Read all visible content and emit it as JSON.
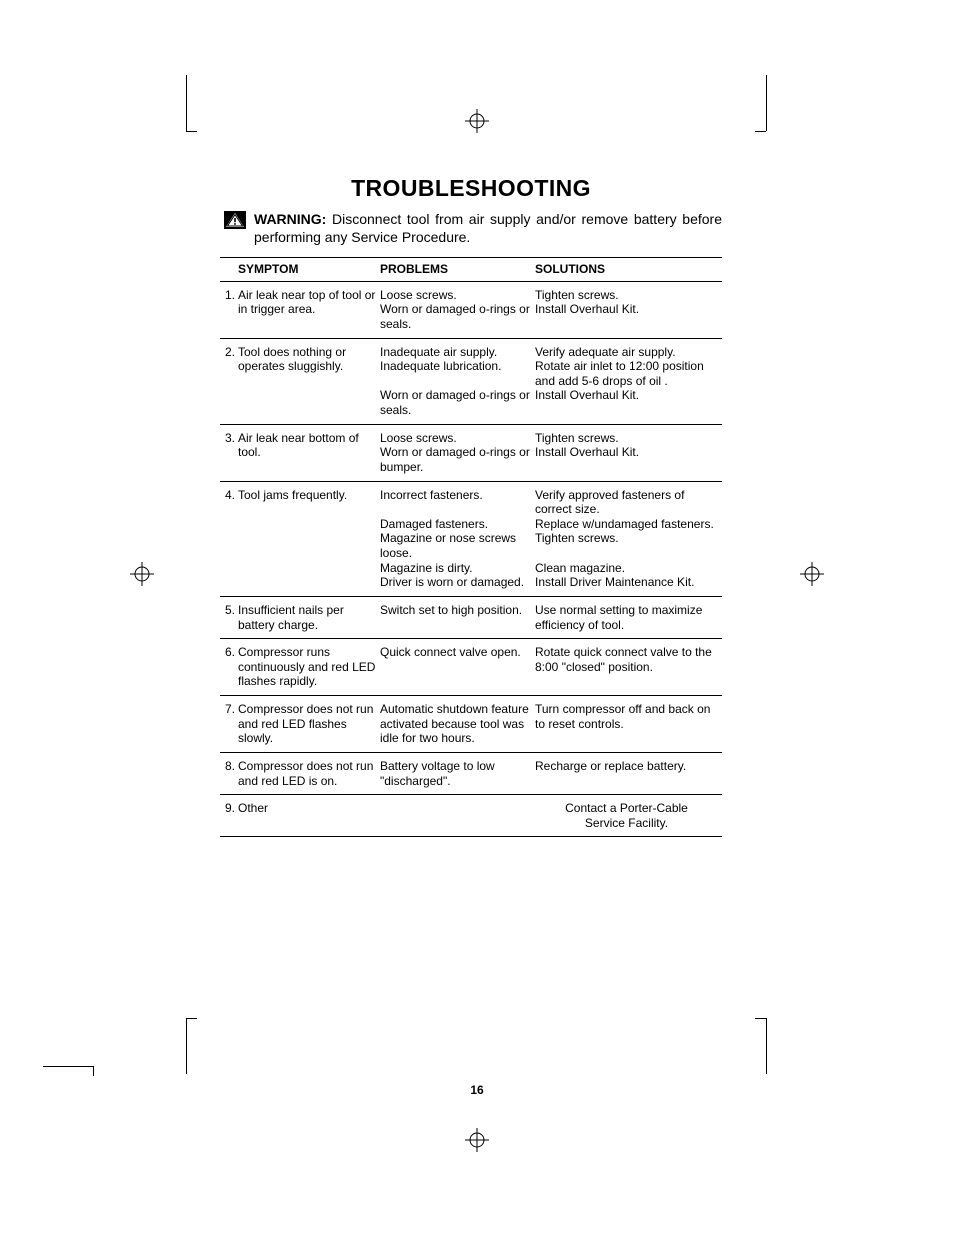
{
  "title": "TROUBLESHOOTING",
  "warning_label": "WARNING:",
  "warning_text": "Disconnect tool from air supply and/or remove battery before performing any Service Procedure.",
  "headers": {
    "symptom": "SYMPTOM",
    "problems": "PROBLEMS",
    "solutions": "SOLUTIONS"
  },
  "rows": [
    {
      "num": "1.",
      "symptom": "Air leak near top of tool or in trigger area.",
      "problems": [
        [
          "Loose screws."
        ],
        [
          "Worn or damaged o-rings or seals."
        ]
      ],
      "solutions": [
        [
          "Tighten screws."
        ],
        [
          "Install Overhaul Kit."
        ]
      ]
    },
    {
      "num": "2.",
      "symptom": "Tool does nothing or operates sluggishly.",
      "problems": [
        [
          "Inadequate air supply."
        ],
        [
          "Inadequate lubrication."
        ],
        [
          ""
        ],
        [
          "Worn or damaged o-rings or seals."
        ]
      ],
      "solutions": [
        [
          "Verify adequate air supply."
        ],
        [
          "Rotate air inlet to 12:00 position and add 5-6 drops  of oil ."
        ],
        [
          "Install Overhaul Kit."
        ]
      ]
    },
    {
      "num": "3.",
      "symptom": "Air leak near bottom of tool.",
      "problems": [
        [
          "Loose screws."
        ],
        [
          "Worn or damaged o-rings or bumper."
        ]
      ],
      "solutions": [
        [
          "Tighten screws."
        ],
        [
          "Install Overhaul Kit."
        ]
      ]
    },
    {
      "num": "4.",
      "symptom": "Tool jams frequently.",
      "problems": [
        [
          "Incorrect fasteners."
        ],
        [
          ""
        ],
        [
          "Damaged fasteners."
        ],
        [
          "Magazine or nose screws loose."
        ],
        [
          "Magazine is dirty."
        ],
        [
          "Driver is worn or damaged."
        ]
      ],
      "solutions": [
        [
          "Verify approved fasteners of correct size."
        ],
        [
          "Replace w/undamaged fasteners."
        ],
        [
          "Tighten screws."
        ],
        [
          ""
        ],
        [
          "Clean magazine."
        ],
        [
          "Install Driver Maintenance Kit."
        ]
      ]
    },
    {
      "num": "5.",
      "symptom": "Insufficient nails per battery charge.",
      "problems": [
        [
          "Switch set to high position."
        ]
      ],
      "solutions": [
        [
          "Use normal setting to maximize efficiency of tool."
        ]
      ]
    },
    {
      "num": "6.",
      "symptom": "Compressor runs continuously and red LED flashes rapidly.",
      "problems": [
        [
          "Quick  connect valve open."
        ]
      ],
      "solutions": [
        [
          "Rotate quick connect valve to the 8:00 \"closed\" position."
        ]
      ]
    },
    {
      "num": "7.",
      "symptom": "Compressor does not run and red LED flashes slowly.",
      "problems": [
        [
          "Automatic shutdown feature activated because tool was idle for two hours."
        ]
      ],
      "solutions": [
        [
          "Turn compressor off and back on to reset controls."
        ]
      ]
    },
    {
      "num": "8.",
      "symptom": "Compressor does not run and red LED is on.",
      "problems": [
        [
          "Battery voltage to low \"discharged\"."
        ]
      ],
      "solutions": [
        [
          "Recharge or replace battery."
        ]
      ]
    },
    {
      "num": "9.",
      "symptom": "Other",
      "problems": [],
      "solutions": [
        [
          "Contact a Porter-Cable"
        ],
        [
          "Service Facility."
        ]
      ],
      "solutions_center": true
    }
  ],
  "page_number": "16",
  "colors": {
    "text": "#000000",
    "bg": "#ffffff",
    "rule": "#000000"
  }
}
